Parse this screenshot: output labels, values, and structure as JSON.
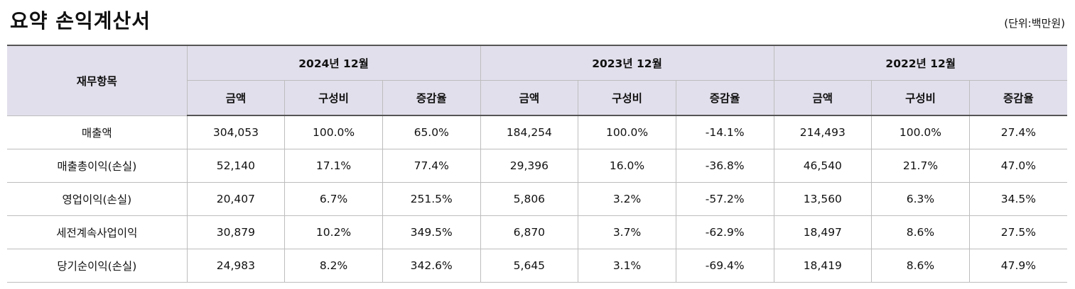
{
  "page": {
    "title": "요약 손익계산서",
    "unit": "(단위:백만원)"
  },
  "table": {
    "item_header": "재무항목",
    "periods": [
      {
        "label": "2024년 12월",
        "columns": [
          "금액",
          "구성비",
          "증감율"
        ]
      },
      {
        "label": "2023년 12월",
        "columns": [
          "금액",
          "구성비",
          "증감율"
        ]
      },
      {
        "label": "2022년 12월",
        "columns": [
          "금액",
          "구성비",
          "증감율"
        ]
      }
    ],
    "rows": [
      {
        "label": "매출액",
        "values": [
          "304,053",
          "100.0%",
          "65.0%",
          "184,254",
          "100.0%",
          "-14.1%",
          "214,493",
          "100.0%",
          "27.4%"
        ]
      },
      {
        "label": "매출총이익(손실)",
        "values": [
          "52,140",
          "17.1%",
          "77.4%",
          "29,396",
          "16.0%",
          "-36.8%",
          "46,540",
          "21.7%",
          "47.0%"
        ]
      },
      {
        "label": "영업이익(손실)",
        "values": [
          "20,407",
          "6.7%",
          "251.5%",
          "5,806",
          "3.2%",
          "-57.2%",
          "13,560",
          "6.3%",
          "34.5%"
        ]
      },
      {
        "label": "세전계속사업이익",
        "values": [
          "30,879",
          "10.2%",
          "349.5%",
          "6,870",
          "3.7%",
          "-62.9%",
          "18,497",
          "8.6%",
          "27.5%"
        ]
      },
      {
        "label": "당기순이익(손실)",
        "values": [
          "24,983",
          "8.2%",
          "342.6%",
          "5,645",
          "3.1%",
          "-69.4%",
          "18,419",
          "8.6%",
          "47.9%"
        ]
      }
    ]
  }
}
